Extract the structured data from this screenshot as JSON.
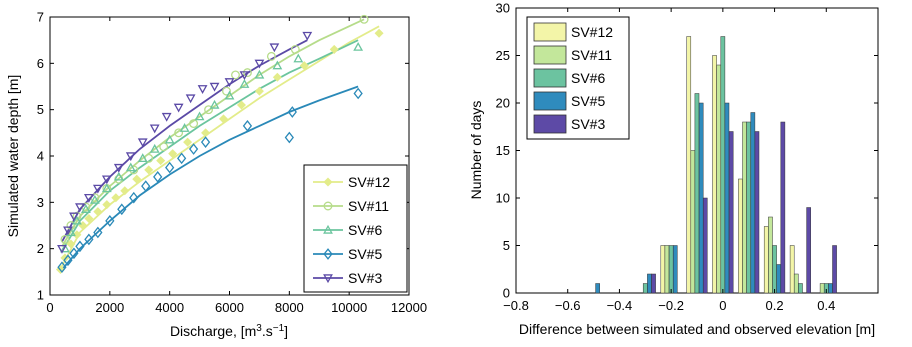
{
  "chart_data": [
    {
      "type": "scatter",
      "xlabel": "Discharge, [m3.s-1]",
      "ylabel": "Simulated water depth [m]",
      "xlim": [
        0,
        12000
      ],
      "ylim": [
        1,
        7
      ],
      "xticks": [
        0,
        2000,
        4000,
        6000,
        8000,
        10000,
        12000
      ],
      "yticks": [
        1,
        2,
        3,
        4,
        5,
        6,
        7
      ],
      "grid": false,
      "legend_position": "bottom-right",
      "series": [
        {
          "name": "SV#12",
          "marker": "diamond-filled",
          "color": "#e3ec8a",
          "points": [
            [
              350,
              1.55
            ],
            [
              500,
              1.8
            ],
            [
              700,
              2.1
            ],
            [
              900,
              2.3
            ],
            [
              1100,
              2.5
            ],
            [
              1300,
              2.65
            ],
            [
              1600,
              2.8
            ],
            [
              1900,
              2.95
            ],
            [
              2200,
              3.1
            ],
            [
              2500,
              3.25
            ],
            [
              2900,
              3.5
            ],
            [
              3300,
              3.7
            ],
            [
              3700,
              3.9
            ],
            [
              4100,
              4.05
            ],
            [
              4600,
              4.3
            ],
            [
              5200,
              4.5
            ],
            [
              5800,
              4.8
            ],
            [
              6400,
              5.1
            ],
            [
              7000,
              5.4
            ],
            [
              7600,
              5.7
            ],
            [
              8500,
              5.95
            ],
            [
              9500,
              6.3
            ],
            [
              11000,
              6.65
            ]
          ],
          "fit": [
            [
              300,
              1.5
            ],
            [
              1000,
              2.35
            ],
            [
              2000,
              2.95
            ],
            [
              3000,
              3.45
            ],
            [
              4000,
              3.9
            ],
            [
              5000,
              4.35
            ],
            [
              6000,
              4.8
            ],
            [
              7000,
              5.25
            ],
            [
              8000,
              5.65
            ],
            [
              9000,
              6.05
            ],
            [
              10000,
              6.45
            ],
            [
              11000,
              6.8
            ]
          ]
        },
        {
          "name": "SV#11",
          "marker": "circle-open",
          "color": "#b6dc8a",
          "points": [
            [
              500,
              2.2
            ],
            [
              700,
              2.5
            ],
            [
              900,
              2.7
            ],
            [
              1200,
              2.9
            ],
            [
              1500,
              3.1
            ],
            [
              1900,
              3.3
            ],
            [
              2300,
              3.5
            ],
            [
              2800,
              3.7
            ],
            [
              3300,
              3.95
            ],
            [
              3800,
              4.2
            ],
            [
              4300,
              4.5
            ],
            [
              4800,
              4.7
            ],
            [
              5300,
              5.0
            ],
            [
              5900,
              5.4
            ],
            [
              6200,
              5.75
            ],
            [
              6600,
              5.8
            ],
            [
              7400,
              6.15
            ],
            [
              8200,
              6.3
            ],
            [
              10500,
              6.95
            ]
          ],
          "fit": [
            [
              400,
              2.05
            ],
            [
              1000,
              2.7
            ],
            [
              2000,
              3.35
            ],
            [
              3000,
              3.9
            ],
            [
              4000,
              4.4
            ],
            [
              5000,
              4.85
            ],
            [
              6000,
              5.3
            ],
            [
              7000,
              5.75
            ],
            [
              8000,
              6.15
            ],
            [
              9000,
              6.5
            ],
            [
              10500,
              6.95
            ]
          ]
        },
        {
          "name": "SV#6",
          "marker": "triangle-up-open",
          "color": "#6bc59e",
          "points": [
            [
              500,
              2.0
            ],
            [
              700,
              2.35
            ],
            [
              900,
              2.6
            ],
            [
              1200,
              2.85
            ],
            [
              1500,
              3.05
            ],
            [
              1900,
              3.3
            ],
            [
              2300,
              3.55
            ],
            [
              2700,
              3.75
            ],
            [
              3100,
              3.95
            ],
            [
              3500,
              4.15
            ],
            [
              4000,
              4.35
            ],
            [
              4500,
              4.6
            ],
            [
              5000,
              4.85
            ],
            [
              5500,
              5.1
            ],
            [
              6000,
              5.3
            ],
            [
              6500,
              5.55
            ],
            [
              7000,
              5.75
            ],
            [
              7600,
              5.95
            ],
            [
              8300,
              6.1
            ],
            [
              10300,
              6.35
            ]
          ],
          "fit": [
            [
              400,
              1.95
            ],
            [
              1000,
              2.6
            ],
            [
              2000,
              3.25
            ],
            [
              3000,
              3.75
            ],
            [
              4000,
              4.2
            ],
            [
              5000,
              4.65
            ],
            [
              6000,
              5.05
            ],
            [
              7000,
              5.45
            ],
            [
              8000,
              5.8
            ],
            [
              9000,
              6.1
            ],
            [
              10300,
              6.5
            ]
          ]
        },
        {
          "name": "SV#5",
          "marker": "diamond-open",
          "color": "#2a89b8",
          "points": [
            [
              400,
              1.6
            ],
            [
              600,
              1.75
            ],
            [
              800,
              1.9
            ],
            [
              1000,
              2.05
            ],
            [
              1300,
              2.2
            ],
            [
              1600,
              2.35
            ],
            [
              2000,
              2.6
            ],
            [
              2400,
              2.85
            ],
            [
              2800,
              3.1
            ],
            [
              3200,
              3.35
            ],
            [
              3600,
              3.55
            ],
            [
              4000,
              3.75
            ],
            [
              4400,
              3.95
            ],
            [
              4800,
              4.15
            ],
            [
              5200,
              4.3
            ],
            [
              6600,
              4.65
            ],
            [
              8000,
              4.4
            ],
            [
              8100,
              4.95
            ],
            [
              10300,
              5.35
            ]
          ],
          "fit": [
            [
              400,
              1.55
            ],
            [
              1000,
              2.0
            ],
            [
              2000,
              2.6
            ],
            [
              3000,
              3.15
            ],
            [
              4000,
              3.6
            ],
            [
              5000,
              4.0
            ],
            [
              6000,
              4.35
            ],
            [
              7000,
              4.65
            ],
            [
              8000,
              4.95
            ],
            [
              9000,
              5.2
            ],
            [
              10300,
              5.5
            ]
          ]
        },
        {
          "name": "SV#3",
          "marker": "triangle-down-open",
          "color": "#5b4aa6",
          "points": [
            [
              400,
              2.0
            ],
            [
              600,
              2.4
            ],
            [
              800,
              2.7
            ],
            [
              1000,
              2.9
            ],
            [
              1300,
              3.1
            ],
            [
              1600,
              3.3
            ],
            [
              1900,
              3.5
            ],
            [
              2300,
              3.75
            ],
            [
              2700,
              4.0
            ],
            [
              3100,
              4.3
            ],
            [
              3500,
              4.6
            ],
            [
              3900,
              4.85
            ],
            [
              4300,
              5.05
            ],
            [
              4700,
              5.25
            ],
            [
              5100,
              5.45
            ],
            [
              5500,
              5.5
            ],
            [
              6000,
              5.6
            ],
            [
              6500,
              5.75
            ],
            [
              7000,
              6.0
            ],
            [
              7500,
              6.35
            ],
            [
              8600,
              6.6
            ]
          ],
          "fit": [
            [
              400,
              2.15
            ],
            [
              1000,
              2.85
            ],
            [
              2000,
              3.55
            ],
            [
              3000,
              4.15
            ],
            [
              4000,
              4.65
            ],
            [
              5000,
              5.1
            ],
            [
              6000,
              5.55
            ],
            [
              7000,
              5.95
            ],
            [
              8000,
              6.3
            ],
            [
              8600,
              6.5
            ]
          ]
        }
      ]
    },
    {
      "type": "bar",
      "xlabel": "Difference between simulated and observed elevation [m]",
      "ylabel": "Number of days",
      "xlim": [
        -0.8,
        0.6
      ],
      "ylim": [
        0,
        30
      ],
      "xticks": [
        -0.8,
        -0.6,
        -0.4,
        -0.2,
        0,
        0.2,
        0.4
      ],
      "xtick_labels": [
        "−0.8",
        "−0.6",
        "−0.4",
        "−0.2",
        "0",
        "0.2",
        "0.4"
      ],
      "yticks": [
        0,
        5,
        10,
        15,
        20,
        25,
        30
      ],
      "grid": false,
      "legend_position": "top-left",
      "categories": [
        -0.5,
        -0.3,
        -0.2,
        -0.1,
        0,
        0.1,
        0.2,
        0.3,
        0.4
      ],
      "series": [
        {
          "name": "SV#12",
          "color": "#f3f5a8",
          "values": [
            0,
            0,
            5,
            27,
            25,
            12,
            7,
            5,
            0
          ]
        },
        {
          "name": "SV#11",
          "color": "#c3e79b",
          "values": [
            0,
            0,
            5,
            15,
            24,
            18,
            8,
            2,
            1
          ]
        },
        {
          "name": "SV#6",
          "color": "#6cc3a0",
          "values": [
            0,
            1,
            5,
            21,
            27,
            18,
            5,
            1,
            1
          ]
        },
        {
          "name": "SV#5",
          "color": "#2f8bbd",
          "values": [
            1,
            2,
            5,
            20,
            20,
            19,
            3,
            0,
            1
          ]
        },
        {
          "name": "SV#3",
          "color": "#5d4aa6",
          "values": [
            0,
            2,
            0,
            10,
            17,
            17,
            18,
            9,
            5
          ]
        }
      ]
    }
  ]
}
